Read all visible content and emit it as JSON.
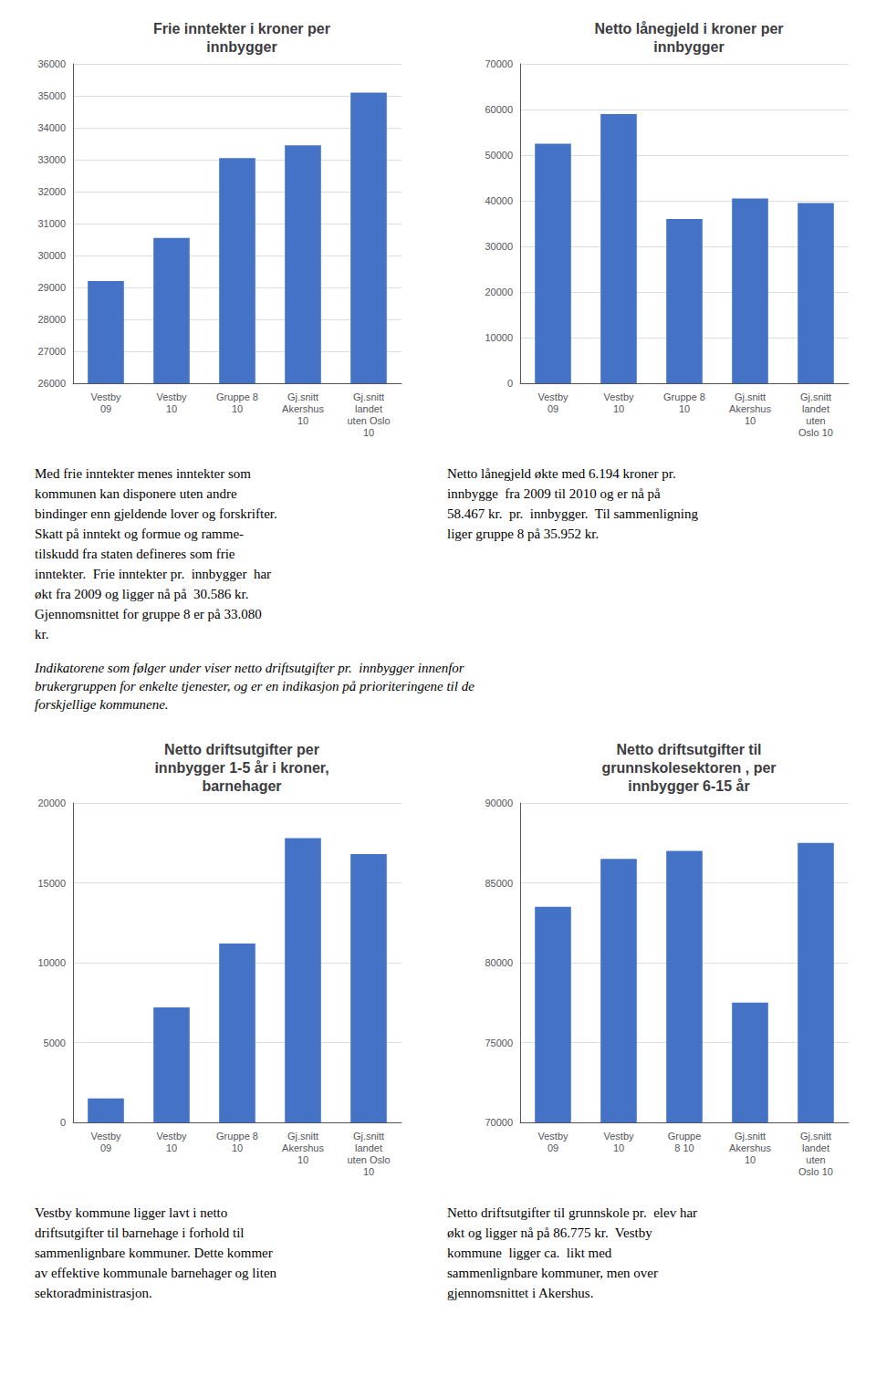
{
  "chart_data": [
    {
      "type": "bar",
      "title": "Frie inntekter i kroner per\ninnbygger",
      "categories": [
        "Vestby\n09",
        "Vestby\n10",
        "Gruppe 8\n10",
        "Gj.snitt\nAkershus\n10",
        "Gj.snitt\nlandet\nuten Oslo\n10"
      ],
      "values": [
        29200,
        30550,
        33050,
        33450,
        35100
      ],
      "color": "#4472C4",
      "ylim": [
        26000,
        36000
      ],
      "yticks": [
        26000,
        27000,
        28000,
        29000,
        30000,
        31000,
        32000,
        33000,
        34000,
        35000,
        36000
      ],
      "grid": true,
      "annotations": [
        "Med frie inntekter menes inntekter som\nkommunen kan disponere uten andre\nbindinger enn gjeldende lover og forskrifter.\nSkatt på inntekt og formue og ramme-\ntilskudd fra staten defineres som frie\ninntekter.  Frie inntekter pr.  innbygger  har\nøkt fra 2009 og ligger nå på  30.586 kr.\nGjennomsnittet for gruppe 8 er på 33.080\nkr."
      ]
    },
    {
      "type": "bar",
      "title": "Netto lånegjeld i kroner per\ninnbygger",
      "categories": [
        "Vestby\n09",
        "Vestby\n10",
        "Gruppe 8\n10",
        "Gj.snitt\nAkershus\n10",
        "Gj.snitt\nlandet\nuten\nOslo 10"
      ],
      "values": [
        52500,
        59000,
        36000,
        40500,
        39500
      ],
      "color": "#4472C4",
      "ylim": [
        0,
        70000
      ],
      "yticks": [
        0,
        10000,
        20000,
        30000,
        40000,
        50000,
        60000,
        70000
      ],
      "grid": true,
      "annotations": [
        "Netto lånegjeld økte med 6.194 kroner pr.\ninnbygge  fra 2009 til 2010 og er nå på\n58.467 kr.  pr.  innbygger.  Til sammenligning\nliger gruppe 8 på 35.952 kr."
      ]
    },
    {
      "type": "bar",
      "title": "Netto driftsutgifter per\ninnbygger 1-5 år i kroner,\nbarnehager",
      "categories": [
        "Vestby\n09",
        "Vestby\n10",
        "Gruppe 8\n10",
        "Gj.snitt\nAkershus\n10",
        "Gj.snitt\nlandet\nuten Oslo\n10"
      ],
      "values": [
        1500,
        7200,
        11200,
        17800,
        16800
      ],
      "color": "#4472C4",
      "ylim": [
        0,
        20000
      ],
      "yticks": [
        0,
        5000,
        10000,
        15000,
        20000
      ],
      "grid": true,
      "annotations": [
        "Vestby kommune ligger lavt i netto\ndriftsutgifter til barnehage i forhold til\nsammenlignbare kommuner. Dette kommer\nav effektive kommunale barnehager og liten\nsektoradministrasjon."
      ]
    },
    {
      "type": "bar",
      "title": "Netto driftsutgifter til\ngrunnskolesektoren , per\ninnbygger 6-15 år",
      "categories": [
        "Vestby\n09",
        "Vestby\n10",
        "Gruppe\n8 10",
        "Gj.snitt\nAkershus\n10",
        "Gj.snitt\nlandet\nuten\nOslo 10"
      ],
      "values": [
        83500,
        86500,
        87000,
        77500,
        87500
      ],
      "color": "#4472C4",
      "ylim": [
        70000,
        90000
      ],
      "yticks": [
        70000,
        75000,
        80000,
        85000,
        90000
      ],
      "grid": true,
      "annotations": [
        "Netto driftsutgifter til grunnskole pr.  elev har\nøkt og ligger nå på 86.775 kr.  Vestby\nkommune  ligger ca.  likt med\nsammenlignbare kommuner, men over\ngjennomsnittet i Akershus."
      ]
    }
  ],
  "annotations": [
    "Indikatorene som følger under viser netto driftsutgifter pr.  innbygger innenfor\nbrukergruppen for enkelte tjenester, og er en indikasjon på prioriteringene til de\nforskjellige kommunene."
  ]
}
